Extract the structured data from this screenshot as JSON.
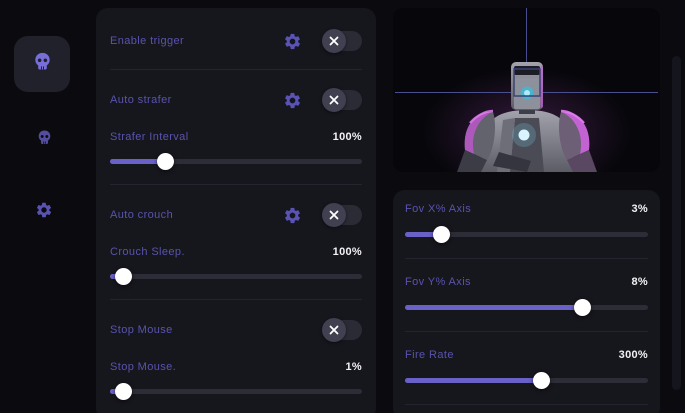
{
  "colors": {
    "page_bg": "#0b0b0f",
    "panel_bg": "#16161d",
    "preview_bg": "#07070b",
    "accent_purple": "#6a61c8",
    "label_purple": "#5a53ae",
    "magenta_glow": "#c855d8",
    "crosshair_blue": "#4a508f",
    "value_white": "#f2f2f5"
  },
  "sidebar": {
    "items": [
      {
        "icon": "skull-icon",
        "active": true
      },
      {
        "icon": "skull-icon",
        "active": false
      },
      {
        "icon": "gear-icon",
        "active": false
      }
    ]
  },
  "middle_panel": {
    "groups": [
      {
        "toggle": {
          "label": "Enable trigger",
          "has_gear": true,
          "state": "off"
        }
      },
      {
        "toggle": {
          "label": "Auto strafer",
          "has_gear": true,
          "state": "off"
        },
        "slider": {
          "label": "Strafer Interval",
          "value": "100%",
          "position_pct": 22
        }
      },
      {
        "toggle": {
          "label": "Auto crouch",
          "has_gear": true,
          "state": "off"
        },
        "slider": {
          "label": "Crouch Sleep.",
          "value": "100%",
          "position_pct": 5
        }
      },
      {
        "toggle": {
          "label": "Stop Mouse",
          "has_gear": false,
          "state": "off"
        },
        "slider": {
          "label": "Stop Mouse.",
          "value": "1%",
          "position_pct": 5
        }
      }
    ]
  },
  "right_panel": {
    "preview": {
      "subject": "robot bust 3d model with aim crosshair and head target box"
    },
    "sliders": [
      {
        "label": "Fov X% Axis",
        "value": "3%",
        "position_pct": 15
      },
      {
        "label": "Fov Y% Axis",
        "value": "8%",
        "position_pct": 73
      },
      {
        "label": "Fire Rate",
        "value": "300%",
        "position_pct": 56
      }
    ]
  }
}
